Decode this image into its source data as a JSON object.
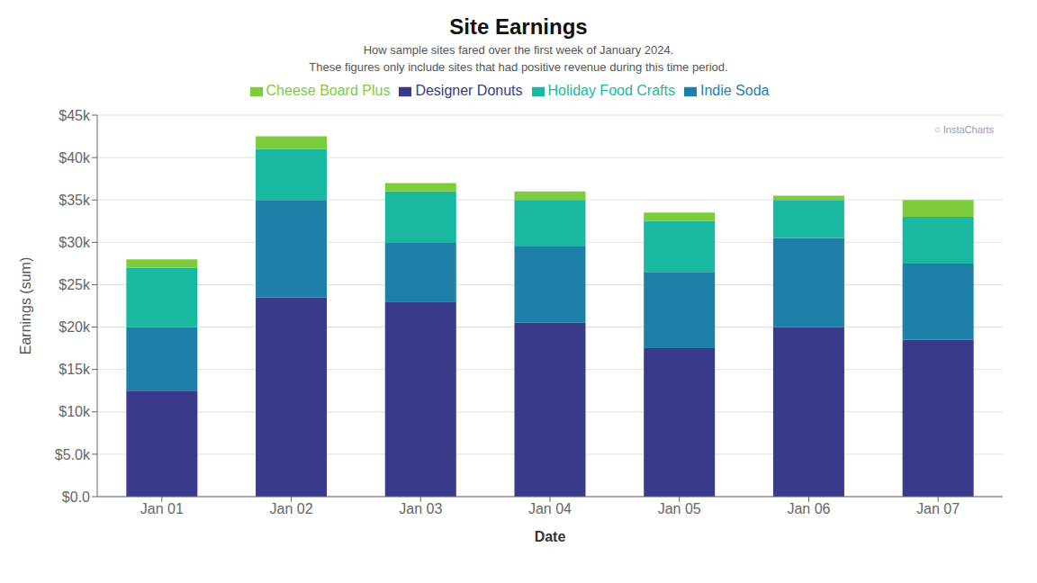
{
  "chart_data": {
    "type": "bar",
    "title": "Site Earnings",
    "subtitle": [
      "How sample sites fared over the first week of January 2024.",
      "These figures only include sites that had positive revenue during this time period."
    ],
    "xlabel": "Date",
    "ylabel": "Earnings (sum)",
    "categories": [
      "Jan 01",
      "Jan 02",
      "Jan 03",
      "Jan 04",
      "Jan 05",
      "Jan 06",
      "Jan 07"
    ],
    "series": [
      {
        "name": "Designer Donuts",
        "color": "#3a3a8c",
        "values": [
          12500,
          23500,
          23000,
          20500,
          17500,
          20000,
          18500
        ]
      },
      {
        "name": "Indie Soda",
        "color": "#1e7fa8",
        "values": [
          7500,
          11500,
          7000,
          9000,
          9000,
          10500,
          9000
        ]
      },
      {
        "name": "Holiday Food Crafts",
        "color": "#19b8a0",
        "values": [
          7000,
          6000,
          6000,
          5500,
          6000,
          4500,
          5500
        ]
      },
      {
        "name": "Cheese Board Plus",
        "color": "#7ccc3c",
        "values": [
          1000,
          1500,
          1000,
          1000,
          1000,
          500,
          2000
        ]
      }
    ],
    "stacked": true,
    "ylim": [
      0,
      45000
    ],
    "yticks": [
      {
        "value": 0,
        "label": "$0.0"
      },
      {
        "value": 5000,
        "label": "$5.0k"
      },
      {
        "value": 10000,
        "label": "$10k"
      },
      {
        "value": 15000,
        "label": "$15k"
      },
      {
        "value": 20000,
        "label": "$20k"
      },
      {
        "value": 25000,
        "label": "$25k"
      },
      {
        "value": 30000,
        "label": "$30k"
      },
      {
        "value": 35000,
        "label": "$35k"
      },
      {
        "value": 40000,
        "label": "$40k"
      },
      {
        "value": 45000,
        "label": "$45k"
      }
    ],
    "grid": true,
    "legend": "top",
    "annotations": [
      "○ InstaCharts"
    ]
  }
}
